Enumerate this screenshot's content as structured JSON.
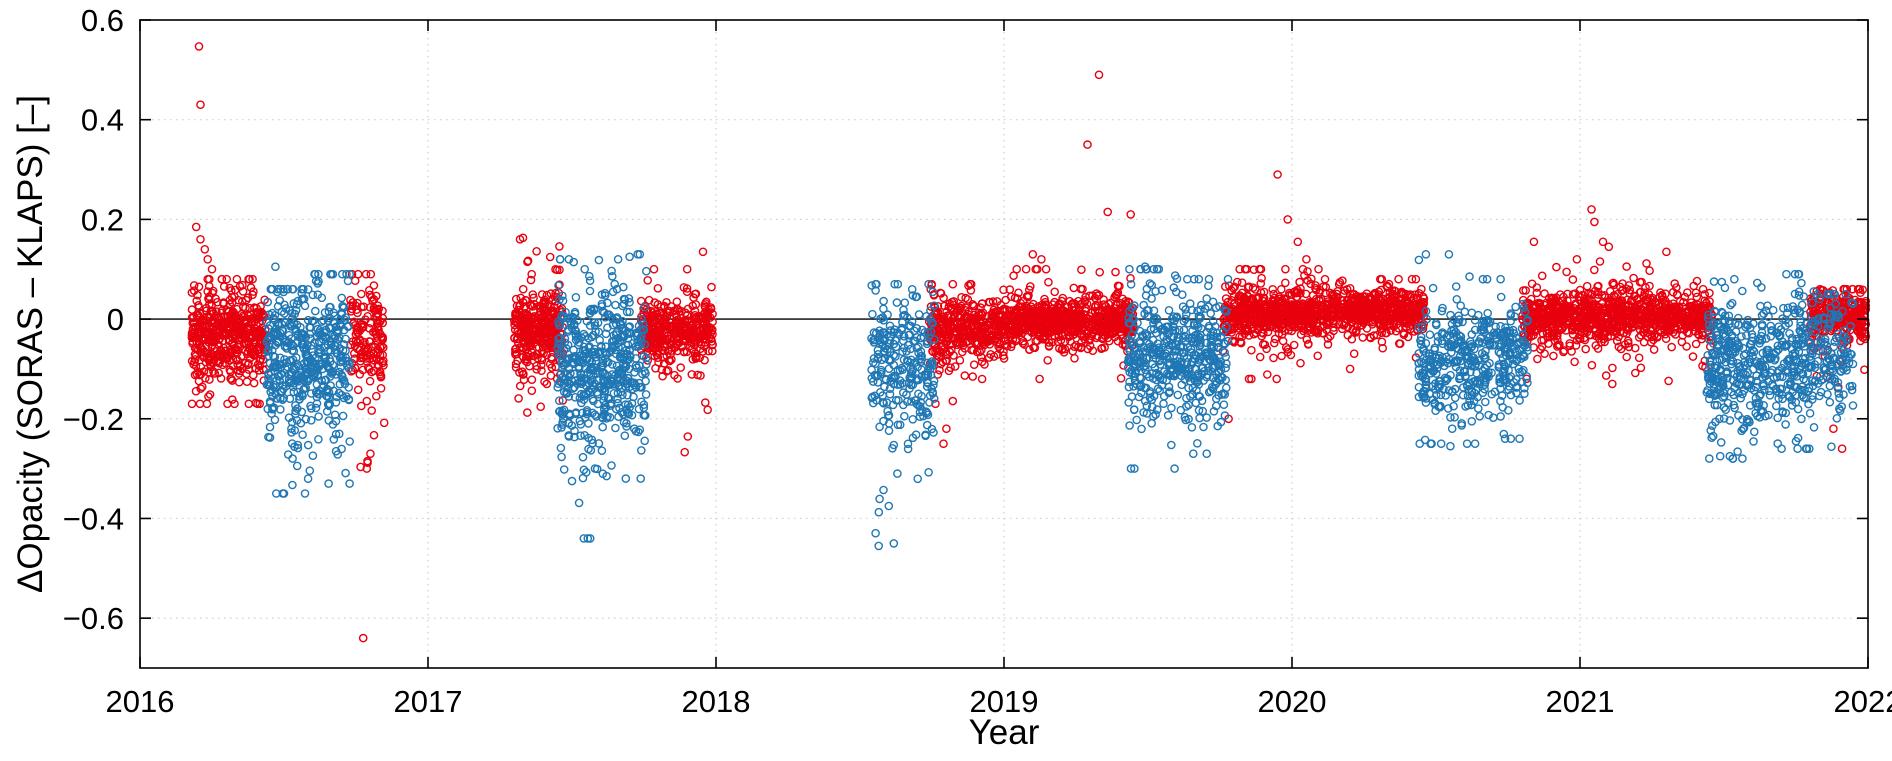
{
  "figure": {
    "xlabel": "Year",
    "ylabel": "ΔOpacity (SORAS – KLAPS) [–]"
  },
  "chart_data": {
    "type": "scatter",
    "title": "",
    "xlabel": "Year",
    "ylabel": "ΔOpacity (SORAS – KLAPS) [–]",
    "xlim": [
      2016,
      2022
    ],
    "ylim": [
      -0.7,
      0.6
    ],
    "xticks": [
      2016,
      2017,
      2018,
      2019,
      2020,
      2021,
      2022
    ],
    "yticks": [
      -0.6,
      -0.4,
      -0.2,
      0,
      0.2,
      0.4,
      0.6
    ],
    "grid": true,
    "grid_color": "#cfcfcf",
    "zero_line": true,
    "zero_line_color": "#000000",
    "legend": "none",
    "marker": "open-circle",
    "series": [
      {
        "id": "red",
        "color": "#e8000e",
        "marker": "open-circle"
      },
      {
        "id": "blue",
        "color": "#1f77b4",
        "marker": "open-circle"
      }
    ],
    "clusters": [
      {
        "series": "red",
        "x0": 2016.18,
        "x1": 2016.44,
        "n": 500,
        "mean": -0.035,
        "std": 0.04,
        "min": -0.17,
        "max": 0.08
      },
      {
        "series": "blue",
        "x0": 2016.44,
        "x1": 2016.6,
        "n": 280,
        "mean": -0.09,
        "std": 0.07,
        "min": -0.35,
        "max": 0.06
      },
      {
        "series": "blue",
        "x0": 2016.6,
        "x1": 2016.73,
        "n": 200,
        "mean": -0.08,
        "std": 0.07,
        "min": -0.33,
        "max": 0.09
      },
      {
        "series": "red",
        "x0": 2016.73,
        "x1": 2016.85,
        "n": 150,
        "mean": -0.04,
        "std": 0.05,
        "min": -0.3,
        "max": 0.09
      },
      {
        "series": "red",
        "x0": 2017.3,
        "x1": 2017.47,
        "n": 350,
        "mean": -0.025,
        "std": 0.035,
        "min": -0.26,
        "max": 0.16
      },
      {
        "series": "blue",
        "x0": 2017.45,
        "x1": 2017.62,
        "n": 300,
        "mean": -0.1,
        "std": 0.08,
        "min": -0.44,
        "max": 0.12
      },
      {
        "series": "blue",
        "x0": 2017.62,
        "x1": 2017.76,
        "n": 220,
        "mean": -0.09,
        "std": 0.07,
        "min": -0.32,
        "max": 0.13
      },
      {
        "series": "red",
        "x0": 2017.74,
        "x1": 2017.99,
        "n": 380,
        "mean": -0.025,
        "std": 0.03,
        "min": -0.28,
        "max": 0.1
      },
      {
        "series": "blue",
        "x0": 2018.54,
        "x1": 2018.76,
        "n": 260,
        "mean": -0.08,
        "std": 0.07,
        "min": -0.45,
        "max": 0.07
      },
      {
        "series": "red",
        "x0": 2018.74,
        "x1": 2019.0,
        "n": 380,
        "mean": -0.02,
        "std": 0.03,
        "min": -0.17,
        "max": 0.07
      },
      {
        "series": "red",
        "x0": 2019.0,
        "x1": 2019.45,
        "n": 750,
        "mean": -0.005,
        "std": 0.022,
        "min": -0.12,
        "max": 0.1
      },
      {
        "series": "blue",
        "x0": 2019.43,
        "x1": 2019.63,
        "n": 280,
        "mean": -0.07,
        "std": 0.06,
        "min": -0.3,
        "max": 0.1
      },
      {
        "series": "blue",
        "x0": 2019.63,
        "x1": 2019.78,
        "n": 200,
        "mean": -0.08,
        "std": 0.06,
        "min": -0.27,
        "max": 0.08
      },
      {
        "series": "red",
        "x0": 2019.76,
        "x1": 2020.1,
        "n": 550,
        "mean": 0.01,
        "std": 0.025,
        "min": -0.12,
        "max": 0.1
      },
      {
        "series": "red",
        "x0": 2020.1,
        "x1": 2020.46,
        "n": 550,
        "mean": 0.015,
        "std": 0.02,
        "min": -0.1,
        "max": 0.08
      },
      {
        "series": "blue",
        "x0": 2020.44,
        "x1": 2020.66,
        "n": 260,
        "mean": -0.09,
        "std": 0.055,
        "min": -0.25,
        "max": 0.13
      },
      {
        "series": "blue",
        "x0": 2020.66,
        "x1": 2020.82,
        "n": 180,
        "mean": -0.08,
        "std": 0.05,
        "min": -0.24,
        "max": 0.08
      },
      {
        "series": "red",
        "x0": 2020.8,
        "x1": 2021.46,
        "n": 950,
        "mean": 0.005,
        "std": 0.025,
        "min": -0.13,
        "max": 0.12
      },
      {
        "series": "blue",
        "x0": 2021.44,
        "x1": 2021.64,
        "n": 280,
        "mean": -0.09,
        "std": 0.06,
        "min": -0.28,
        "max": 0.08
      },
      {
        "series": "blue",
        "x0": 2021.64,
        "x1": 2021.82,
        "n": 220,
        "mean": -0.08,
        "std": 0.06,
        "min": -0.26,
        "max": 0.09
      },
      {
        "series": "blue",
        "x0": 2021.82,
        "x1": 2021.95,
        "n": 120,
        "mean": -0.07,
        "std": 0.06,
        "min": -0.27,
        "max": 0.05
      },
      {
        "series": "red",
        "x0": 2021.8,
        "x1": 2021.995,
        "n": 300,
        "mean": 0.005,
        "std": 0.025,
        "min": -0.16,
        "max": 0.06
      }
    ],
    "outliers": [
      {
        "series": "red",
        "x": 2016.205,
        "y": 0.547
      },
      {
        "series": "red",
        "x": 2016.21,
        "y": 0.43
      },
      {
        "series": "red",
        "x": 2016.195,
        "y": 0.185
      },
      {
        "series": "red",
        "x": 2016.21,
        "y": 0.16
      },
      {
        "series": "red",
        "x": 2016.225,
        "y": 0.14
      },
      {
        "series": "red",
        "x": 2016.235,
        "y": 0.12
      },
      {
        "series": "red",
        "x": 2016.25,
        "y": 0.1
      },
      {
        "series": "red",
        "x": 2016.775,
        "y": -0.64
      },
      {
        "series": "red",
        "x": 2016.79,
        "y": -0.285
      },
      {
        "series": "red",
        "x": 2016.8,
        "y": -0.27
      },
      {
        "series": "red",
        "x": 2017.33,
        "y": 0.163
      },
      {
        "series": "red",
        "x": 2017.345,
        "y": 0.115
      },
      {
        "series": "red",
        "x": 2017.36,
        "y": 0.09
      },
      {
        "series": "red",
        "x": 2017.955,
        "y": 0.135
      },
      {
        "series": "red",
        "x": 2018.79,
        "y": -0.25
      },
      {
        "series": "red",
        "x": 2018.8,
        "y": -0.22
      },
      {
        "series": "red",
        "x": 2019.29,
        "y": 0.35
      },
      {
        "series": "red",
        "x": 2019.33,
        "y": 0.49
      },
      {
        "series": "red",
        "x": 2019.36,
        "y": 0.215
      },
      {
        "series": "red",
        "x": 2019.44,
        "y": 0.21
      },
      {
        "series": "red",
        "x": 2019.1,
        "y": 0.13
      },
      {
        "series": "red",
        "x": 2019.13,
        "y": 0.12
      },
      {
        "series": "red",
        "x": 2019.78,
        "y": -0.2
      },
      {
        "series": "red",
        "x": 2019.95,
        "y": 0.29
      },
      {
        "series": "red",
        "x": 2019.985,
        "y": 0.2
      },
      {
        "series": "red",
        "x": 2020.02,
        "y": 0.155
      },
      {
        "series": "red",
        "x": 2020.05,
        "y": 0.12
      },
      {
        "series": "red",
        "x": 2020.84,
        "y": 0.155
      },
      {
        "series": "red",
        "x": 2021.04,
        "y": 0.22
      },
      {
        "series": "red",
        "x": 2021.05,
        "y": 0.195
      },
      {
        "series": "red",
        "x": 2021.08,
        "y": 0.155
      },
      {
        "series": "red",
        "x": 2021.1,
        "y": 0.145
      },
      {
        "series": "red",
        "x": 2021.3,
        "y": 0.135
      },
      {
        "series": "red",
        "x": 2021.88,
        "y": -0.22
      },
      {
        "series": "red",
        "x": 2021.91,
        "y": -0.26
      },
      {
        "series": "blue",
        "x": 2016.47,
        "y": 0.105
      },
      {
        "series": "blue",
        "x": 2016.5,
        "y": -0.35
      },
      {
        "series": "blue",
        "x": 2016.53,
        "y": -0.28
      },
      {
        "series": "blue",
        "x": 2016.655,
        "y": -0.33
      },
      {
        "series": "blue",
        "x": 2017.5,
        "y": -0.325
      },
      {
        "series": "blue",
        "x": 2017.555,
        "y": -0.44
      },
      {
        "series": "blue",
        "x": 2017.58,
        "y": -0.3
      },
      {
        "series": "blue",
        "x": 2017.62,
        "y": -0.315
      },
      {
        "series": "blue",
        "x": 2017.66,
        "y": 0.12
      },
      {
        "series": "blue",
        "x": 2017.7,
        "y": 0.125
      },
      {
        "series": "blue",
        "x": 2018.565,
        "y": -0.455
      },
      {
        "series": "blue",
        "x": 2018.6,
        "y": -0.375
      },
      {
        "series": "blue",
        "x": 2018.63,
        "y": -0.31
      },
      {
        "series": "blue",
        "x": 2019.49,
        "y": 0.105
      },
      {
        "series": "blue",
        "x": 2019.52,
        "y": 0.1
      },
      {
        "series": "blue",
        "x": 2020.465,
        "y": 0.13
      },
      {
        "series": "blue",
        "x": 2020.55,
        "y": -0.255
      },
      {
        "series": "blue",
        "x": 2020.74,
        "y": -0.24
      },
      {
        "series": "blue",
        "x": 2021.52,
        "y": -0.275
      },
      {
        "series": "blue",
        "x": 2021.7,
        "y": -0.26
      },
      {
        "series": "blue",
        "x": 2021.75,
        "y": -0.245
      }
    ]
  }
}
